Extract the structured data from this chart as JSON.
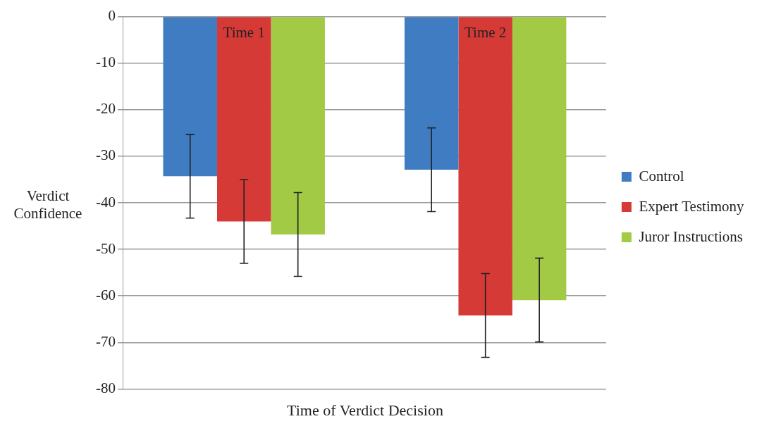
{
  "chart_data": {
    "type": "bar",
    "xlabel": "Time of Verdict Decision",
    "ylabel": "Verdict\nConfidence",
    "categories": [
      "Time 1",
      "Time 2"
    ],
    "series": [
      {
        "name": "Control",
        "color": "#3f7cc2",
        "values": [
          -34.3,
          -32.9
        ],
        "errors": [
          9,
          9
        ]
      },
      {
        "name": "Expert Testimony",
        "color": "#d63a36",
        "values": [
          -44,
          -64.2
        ],
        "errors": [
          9,
          9
        ]
      },
      {
        "name": "Juror Instructions",
        "color": "#a2ca45",
        "values": [
          -46.8,
          -60.9
        ],
        "errors": [
          9,
          9
        ]
      }
    ],
    "ylim": [
      -80,
      0
    ],
    "yticks": [
      -80,
      -70,
      -60,
      -50,
      -40,
      -30,
      -20,
      -10,
      0
    ],
    "grid": "y",
    "legend": "right"
  }
}
